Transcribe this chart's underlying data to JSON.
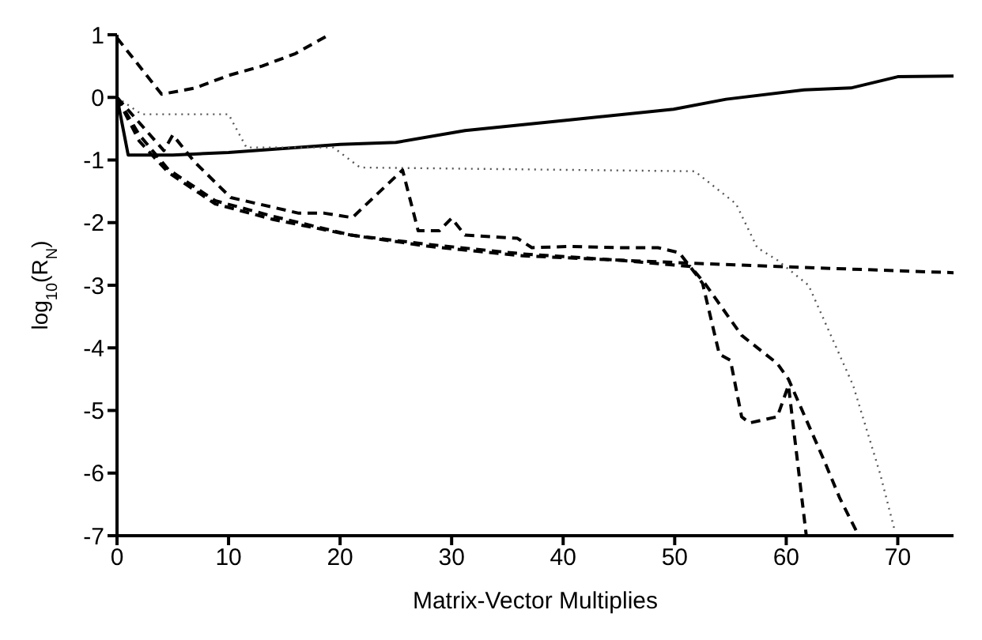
{
  "chart_data": {
    "type": "line",
    "xlabel": "Matrix-Vector Multiplies",
    "ylabel": "log$_{10}$(R$_{N}$)",
    "xlim": [
      0,
      75
    ],
    "ylim": [
      -7,
      1
    ],
    "xticks": [
      0,
      10,
      20,
      30,
      40,
      50,
      60,
      70
    ],
    "yticks": [
      -7,
      -6,
      -5,
      -4,
      -3,
      -2,
      -1,
      0,
      1
    ],
    "grid": false,
    "legend": false,
    "marker": "none",
    "series": [
      {
        "color": "#000000",
        "line_style": "dashed",
        "x": [
          0,
          4,
          7,
          10,
          13,
          16,
          19
        ],
        "values": [
          0.95,
          0.05,
          0.15,
          0.35,
          0.5,
          0.7,
          1.0
        ]
      },
      {
        "color": "#000000",
        "line_style": "solid",
        "x": [
          0,
          1,
          5,
          10,
          20,
          25,
          31.2,
          40.6,
          49.9,
          54.6,
          61.6,
          65.8,
          70,
          75
        ],
        "values": [
          0,
          -0.92,
          -0.92,
          -0.88,
          -0.75,
          -0.72,
          -0.53,
          -0.36,
          -0.19,
          -0.03,
          0.12,
          0.15,
          0.33,
          0.34
        ]
      },
      {
        "color": "#555555",
        "line_style": "dotted",
        "x": [
          0,
          2.2,
          10,
          11.6,
          19.4,
          21.8,
          51.8,
          55.5,
          57.4,
          59.2,
          62,
          66,
          68.4,
          69.7
        ],
        "values": [
          0,
          -0.27,
          -0.27,
          -0.8,
          -0.8,
          -1.12,
          -1.18,
          -1.7,
          -2.4,
          -2.6,
          -3.0,
          -4.6,
          -6.0,
          -6.9
        ]
      },
      {
        "color": "#000000",
        "line_style": "dashed",
        "x": [
          0,
          2,
          4.6,
          8.8,
          14,
          21,
          28,
          36.4,
          45,
          51.8,
          59.2,
          67,
          75
        ],
        "values": [
          0,
          -0.7,
          -1.2,
          -1.7,
          -1.95,
          -2.2,
          -2.38,
          -2.53,
          -2.6,
          -2.65,
          -2.7,
          -2.75,
          -2.8
        ]
      },
      {
        "color": "#000000",
        "line_style": "dashed",
        "x": [
          0,
          2,
          4.6,
          8.8,
          14,
          21,
          28,
          36.4,
          45,
          51.4,
          52.7,
          56,
          59.2,
          60.2,
          63.4,
          64.8,
          66.5
        ],
        "values": [
          0,
          -0.6,
          -1.15,
          -1.65,
          -1.9,
          -2.2,
          -2.35,
          -2.5,
          -2.6,
          -2.7,
          -2.97,
          -3.8,
          -4.25,
          -4.5,
          -5.8,
          -6.4,
          -7
        ]
      },
      {
        "color": "#000000",
        "line_style": "dashed",
        "x": [
          0,
          4.2,
          5,
          7,
          10.2,
          16.3,
          18.6,
          21.1,
          25.6,
          27,
          28.9,
          30,
          31.2,
          35.9,
          37.2,
          40.6,
          45.2,
          48.5,
          50.4,
          51.8,
          52.5,
          54,
          55,
          56,
          56.7,
          59.2,
          60.2,
          61.8
        ],
        "values": [
          0,
          -0.85,
          -0.6,
          -1.04,
          -1.6,
          -1.85,
          -1.85,
          -1.92,
          -1.16,
          -2.13,
          -2.13,
          -1.93,
          -2.2,
          -2.25,
          -2.4,
          -2.38,
          -2.4,
          -2.4,
          -2.48,
          -2.8,
          -2.97,
          -4.1,
          -4.2,
          -5.1,
          -5.2,
          -5.1,
          -4.6,
          -7
        ]
      }
    ]
  }
}
